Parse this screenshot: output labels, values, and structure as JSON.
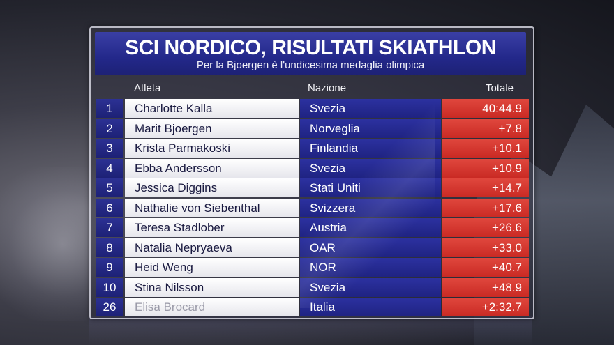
{
  "header": {
    "title": "SCI NORDICO, RISULTATI SKIATHLON",
    "subtitle": "Per la Bjoergen è l'undicesima medaglia olimpica"
  },
  "columns": {
    "athlete": "Atleta",
    "nation": "Nazione",
    "total": "Totale"
  },
  "results": [
    {
      "rank": "1",
      "athlete": "Charlotte Kalla",
      "nation": "Svezia",
      "total": "40:44.9"
    },
    {
      "rank": "2",
      "athlete": "Marit Bjoergen",
      "nation": "Norveglia",
      "total": "+7.8"
    },
    {
      "rank": "3",
      "athlete": "Krista Parmakoski",
      "nation": "Finlandia",
      "total": "+10.1"
    },
    {
      "rank": "4",
      "athlete": "Ebba Andersson",
      "nation": "Svezia",
      "total": "+10.9"
    },
    {
      "rank": "5",
      "athlete": "Jessica Diggins",
      "nation": "Stati Uniti",
      "total": "+14.7"
    },
    {
      "rank": "6",
      "athlete": "Nathalie von Siebenthal",
      "nation": "Svizzera",
      "total": "+17.6"
    },
    {
      "rank": "7",
      "athlete": "Teresa Stadlober",
      "nation": "Austria",
      "total": "+26.6"
    },
    {
      "rank": "8",
      "athlete": "Natalia Nepryaeva",
      "nation": "OAR",
      "total": "+33.0"
    },
    {
      "rank": "9",
      "athlete": "Heid Weng",
      "nation": "NOR",
      "total": "+40.7"
    },
    {
      "rank": "10",
      "athlete": "Stina Nilsson",
      "nation": "Svezia",
      "total": "+48.9"
    },
    {
      "rank": "26",
      "athlete": "Elisa Brocard",
      "nation": "Italia",
      "total": "+2:32.7"
    }
  ],
  "colors": {
    "header_blue": "#23288a",
    "nation_blue": "#2c31a0",
    "total_red": "#d6372f"
  }
}
